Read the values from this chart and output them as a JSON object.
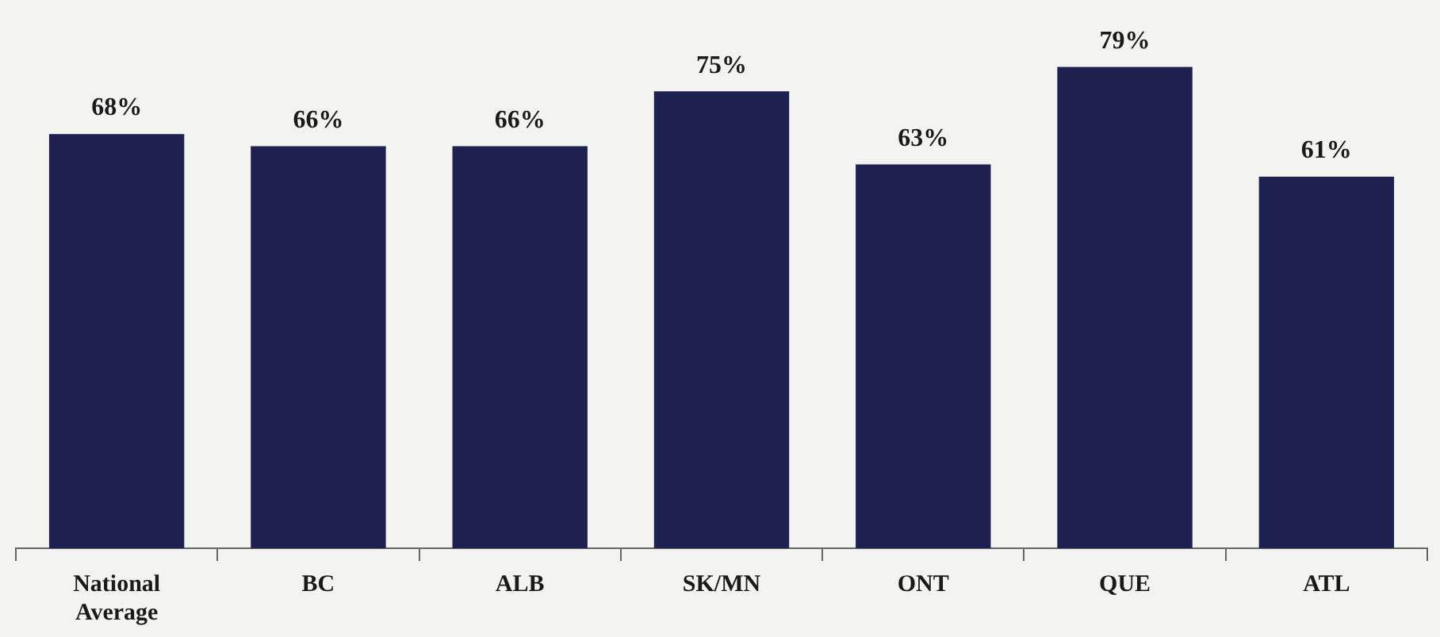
{
  "chart_data": {
    "type": "bar",
    "categories": [
      "National Average",
      "BC",
      "ALB",
      "SK/MN",
      "ONT",
      "QUE",
      "ATL"
    ],
    "values": [
      68,
      66,
      66,
      75,
      63,
      79,
      61
    ],
    "value_labels": [
      "68%",
      "66%",
      "66%",
      "75%",
      "63%",
      "79%",
      "61%"
    ],
    "color": "#1e2150",
    "grid": false,
    "legend": false,
    "tick_labels": "x"
  }
}
